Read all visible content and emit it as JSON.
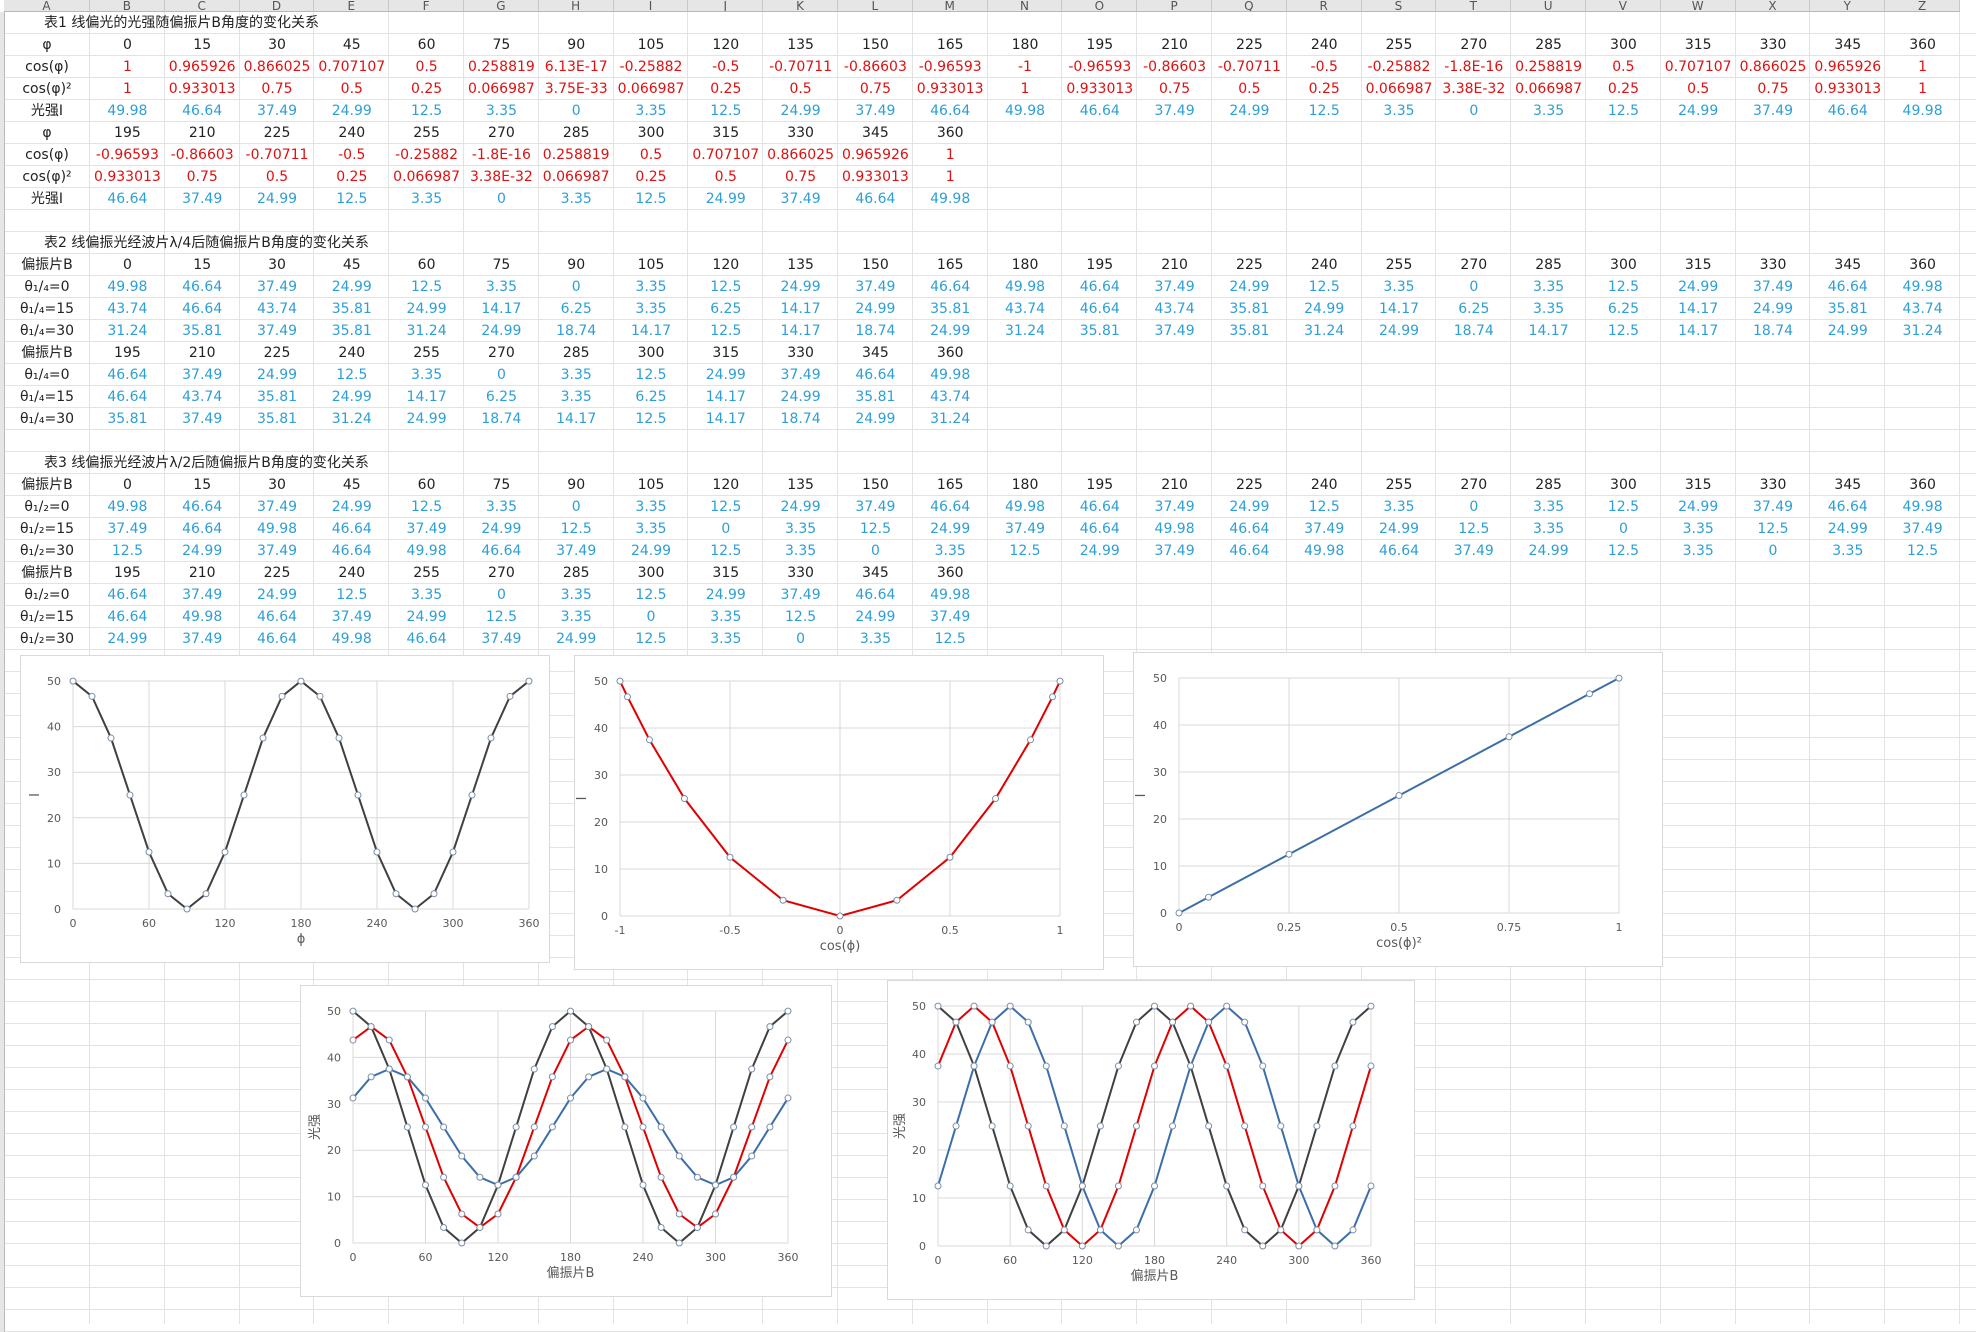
{
  "columns": [
    "A",
    "B",
    "C",
    "D",
    "E",
    "F",
    "G",
    "H",
    "I",
    "J",
    "K",
    "L",
    "M",
    "N",
    "O",
    "P",
    "Q",
    "R",
    "S",
    "T",
    "U",
    "V",
    "W",
    "X",
    "Y",
    "Z"
  ],
  "table1": {
    "title": "表1 线偏光的光强随偏振片B角度的变化关系",
    "row_labels": [
      "φ",
      "cos(φ)",
      "cos(φ)²",
      "光强I"
    ],
    "block1": {
      "phi": [
        "0",
        "15",
        "30",
        "45",
        "60",
        "75",
        "90",
        "105",
        "120",
        "135",
        "150",
        "165",
        "180",
        "195",
        "210",
        "225",
        "240",
        "255",
        "270",
        "285",
        "300",
        "315",
        "330",
        "345",
        "360"
      ],
      "cos": [
        "1",
        "0.965926",
        "0.866025",
        "0.707107",
        "0.5",
        "0.258819",
        "6.13E-17",
        "-0.25882",
        "-0.5",
        "-0.70711",
        "-0.86603",
        "-0.96593",
        "-1",
        "-0.96593",
        "-0.86603",
        "-0.70711",
        "-0.5",
        "-0.25882",
        "-1.8E-16",
        "0.258819",
        "0.5",
        "0.707107",
        "0.866025",
        "0.965926",
        "1"
      ],
      "cos2": [
        "1",
        "0.933013",
        "0.75",
        "0.5",
        "0.25",
        "0.066987",
        "3.75E-33",
        "0.066987",
        "0.25",
        "0.5",
        "0.75",
        "0.933013",
        "1",
        "0.933013",
        "0.75",
        "0.5",
        "0.25",
        "0.066987",
        "3.38E-32",
        "0.066987",
        "0.25",
        "0.5",
        "0.75",
        "0.933013",
        "1"
      ],
      "I": [
        "49.98",
        "46.64",
        "37.49",
        "24.99",
        "12.5",
        "3.35",
        "0",
        "3.35",
        "12.5",
        "24.99",
        "37.49",
        "46.64",
        "49.98",
        "46.64",
        "37.49",
        "24.99",
        "12.5",
        "3.35",
        "0",
        "3.35",
        "12.5",
        "24.99",
        "37.49",
        "46.64",
        "49.98"
      ]
    },
    "block2": {
      "phi": [
        "195",
        "210",
        "225",
        "240",
        "255",
        "270",
        "285",
        "300",
        "315",
        "330",
        "345",
        "360"
      ],
      "cos": [
        "-0.96593",
        "-0.86603",
        "-0.70711",
        "-0.5",
        "-0.25882",
        "-1.8E-16",
        "0.258819",
        "0.5",
        "0.707107",
        "0.866025",
        "0.965926",
        "1"
      ],
      "cos2": [
        "0.933013",
        "0.75",
        "0.5",
        "0.25",
        "0.066987",
        "3.38E-32",
        "0.066987",
        "0.25",
        "0.5",
        "0.75",
        "0.933013",
        "1"
      ],
      "I": [
        "46.64",
        "37.49",
        "24.99",
        "12.5",
        "3.35",
        "0",
        "3.35",
        "12.5",
        "24.99",
        "37.49",
        "46.64",
        "49.98"
      ]
    }
  },
  "table2": {
    "title": "表2 线偏振光经波片λ/4后随偏振片B角度的变化关系",
    "row_labels": [
      "偏振片B",
      "θ₁/₄=0",
      "θ₁/₄=15",
      "θ₁/₄=30"
    ],
    "block1": {
      "B": [
        "0",
        "15",
        "30",
        "45",
        "60",
        "75",
        "90",
        "105",
        "120",
        "135",
        "150",
        "165",
        "180",
        "195",
        "210",
        "225",
        "240",
        "255",
        "270",
        "285",
        "300",
        "315",
        "330",
        "345",
        "360"
      ],
      "r0": [
        "49.98",
        "46.64",
        "37.49",
        "24.99",
        "12.5",
        "3.35",
        "0",
        "3.35",
        "12.5",
        "24.99",
        "37.49",
        "46.64",
        "49.98",
        "46.64",
        "37.49",
        "24.99",
        "12.5",
        "3.35",
        "0",
        "3.35",
        "12.5",
        "24.99",
        "37.49",
        "46.64",
        "49.98"
      ],
      "r15": [
        "43.74",
        "46.64",
        "43.74",
        "35.81",
        "24.99",
        "14.17",
        "6.25",
        "3.35",
        "6.25",
        "14.17",
        "24.99",
        "35.81",
        "43.74",
        "46.64",
        "43.74",
        "35.81",
        "24.99",
        "14.17",
        "6.25",
        "3.35",
        "6.25",
        "14.17",
        "24.99",
        "35.81",
        "43.74"
      ],
      "r30": [
        "31.24",
        "35.81",
        "37.49",
        "35.81",
        "31.24",
        "24.99",
        "18.74",
        "14.17",
        "12.5",
        "14.17",
        "18.74",
        "24.99",
        "31.24",
        "35.81",
        "37.49",
        "35.81",
        "31.24",
        "24.99",
        "18.74",
        "14.17",
        "12.5",
        "14.17",
        "18.74",
        "24.99",
        "31.24"
      ]
    },
    "block2": {
      "B": [
        "195",
        "210",
        "225",
        "240",
        "255",
        "270",
        "285",
        "300",
        "315",
        "330",
        "345",
        "360"
      ],
      "r0": [
        "46.64",
        "37.49",
        "24.99",
        "12.5",
        "3.35",
        "0",
        "3.35",
        "12.5",
        "24.99",
        "37.49",
        "46.64",
        "49.98"
      ],
      "r15": [
        "46.64",
        "43.74",
        "35.81",
        "24.99",
        "14.17",
        "6.25",
        "3.35",
        "6.25",
        "14.17",
        "24.99",
        "35.81",
        "43.74"
      ],
      "r30": [
        "35.81",
        "37.49",
        "35.81",
        "31.24",
        "24.99",
        "18.74",
        "14.17",
        "12.5",
        "14.17",
        "18.74",
        "24.99",
        "31.24"
      ]
    }
  },
  "table3": {
    "title": "表3 线偏振光经波片λ/2后随偏振片B角度的变化关系",
    "row_labels": [
      "偏振片B",
      "θ₁/₂=0",
      "θ₁/₂=15",
      "θ₁/₂=30"
    ],
    "block1": {
      "B": [
        "0",
        "15",
        "30",
        "45",
        "60",
        "75",
        "90",
        "105",
        "120",
        "135",
        "150",
        "165",
        "180",
        "195",
        "210",
        "225",
        "240",
        "255",
        "270",
        "285",
        "300",
        "315",
        "330",
        "345",
        "360"
      ],
      "r0": [
        "49.98",
        "46.64",
        "37.49",
        "24.99",
        "12.5",
        "3.35",
        "0",
        "3.35",
        "12.5",
        "24.99",
        "37.49",
        "46.64",
        "49.98",
        "46.64",
        "37.49",
        "24.99",
        "12.5",
        "3.35",
        "0",
        "3.35",
        "12.5",
        "24.99",
        "37.49",
        "46.64",
        "49.98"
      ],
      "r15": [
        "37.49",
        "46.64",
        "49.98",
        "46.64",
        "37.49",
        "24.99",
        "12.5",
        "3.35",
        "0",
        "3.35",
        "12.5",
        "24.99",
        "37.49",
        "46.64",
        "49.98",
        "46.64",
        "37.49",
        "24.99",
        "12.5",
        "3.35",
        "0",
        "3.35",
        "12.5",
        "24.99",
        "37.49"
      ],
      "r30": [
        "12.5",
        "24.99",
        "37.49",
        "46.64",
        "49.98",
        "46.64",
        "37.49",
        "24.99",
        "12.5",
        "3.35",
        "0",
        "3.35",
        "12.5",
        "24.99",
        "37.49",
        "46.64",
        "49.98",
        "46.64",
        "37.49",
        "24.99",
        "12.5",
        "3.35",
        "0",
        "3.35",
        "12.5"
      ]
    },
    "block2": {
      "B": [
        "195",
        "210",
        "225",
        "240",
        "255",
        "270",
        "285",
        "300",
        "315",
        "330",
        "345",
        "360"
      ],
      "r0": [
        "46.64",
        "37.49",
        "24.99",
        "12.5",
        "3.35",
        "0",
        "3.35",
        "12.5",
        "24.99",
        "37.49",
        "46.64",
        "49.98"
      ],
      "r15": [
        "46.64",
        "49.98",
        "46.64",
        "37.49",
        "24.99",
        "12.5",
        "3.35",
        "0",
        "3.35",
        "12.5",
        "24.99",
        "37.49"
      ],
      "r30": [
        "24.99",
        "37.49",
        "46.64",
        "49.98",
        "46.64",
        "37.49",
        "24.99",
        "12.5",
        "3.35",
        "0",
        "3.35",
        "12.5"
      ]
    }
  },
  "colors": {
    "series_black": "#404040",
    "series_red": "#e00000",
    "series_blue": "#3c6eaa",
    "value_red": "#d11111",
    "value_blue": "#2e9fd6"
  },
  "chart_data": [
    {
      "type": "line",
      "xlabel": "ϕ",
      "ylabel": "I",
      "xlim": [
        0,
        360
      ],
      "ylim": [
        0,
        50
      ],
      "xticks": [
        0,
        60,
        120,
        180,
        240,
        300,
        360
      ],
      "yticks": [
        0,
        10,
        20,
        30,
        40,
        50
      ],
      "x": [
        0,
        15,
        30,
        45,
        60,
        75,
        90,
        105,
        120,
        135,
        150,
        165,
        180,
        195,
        210,
        225,
        240,
        255,
        270,
        285,
        300,
        315,
        330,
        345,
        360
      ],
      "series": [
        {
          "color": "#404040",
          "values": [
            49.98,
            46.64,
            37.49,
            24.99,
            12.5,
            3.35,
            0,
            3.35,
            12.5,
            24.99,
            37.49,
            46.64,
            49.98,
            46.64,
            37.49,
            24.99,
            12.5,
            3.35,
            0,
            3.35,
            12.5,
            24.99,
            37.49,
            46.64,
            49.98
          ]
        }
      ]
    },
    {
      "type": "line",
      "xlabel": "cos(ϕ)",
      "ylabel": "I",
      "xlim": [
        -1,
        1
      ],
      "ylim": [
        0,
        50
      ],
      "xticks": [
        -1,
        -0.5,
        0,
        0.5,
        1
      ],
      "yticks": [
        0,
        10,
        20,
        30,
        40,
        50
      ],
      "x": [
        1,
        0.965926,
        0.866025,
        0.707107,
        0.5,
        0.258819,
        0,
        -0.25882,
        -0.5,
        -0.70711,
        -0.86603,
        -0.96593,
        -1
      ],
      "series": [
        {
          "color": "#e00000",
          "values": [
            49.98,
            46.64,
            37.49,
            24.99,
            12.5,
            3.35,
            0,
            3.35,
            12.5,
            24.99,
            37.49,
            46.64,
            49.98
          ]
        }
      ]
    },
    {
      "type": "line",
      "xlabel": "cos(ϕ)²",
      "ylabel": "I",
      "xlim": [
        0,
        1
      ],
      "ylim": [
        0,
        50
      ],
      "xticks": [
        0,
        0.25,
        0.5,
        0.75,
        1
      ],
      "yticks": [
        0,
        10,
        20,
        30,
        40,
        50
      ],
      "x": [
        0,
        0.066987,
        0.25,
        0.5,
        0.75,
        0.933013,
        1
      ],
      "series": [
        {
          "color": "#3c6eaa",
          "values": [
            0,
            3.35,
            12.5,
            24.99,
            37.49,
            46.64,
            49.98
          ]
        }
      ]
    },
    {
      "type": "line",
      "xlabel": "偏振片B",
      "ylabel": "光强",
      "xlim": [
        0,
        360
      ],
      "ylim": [
        0,
        50
      ],
      "xticks": [
        0,
        60,
        120,
        180,
        240,
        300,
        360
      ],
      "yticks": [
        0,
        10,
        20,
        30,
        40,
        50
      ],
      "x": [
        0,
        15,
        30,
        45,
        60,
        75,
        90,
        105,
        120,
        135,
        150,
        165,
        180,
        195,
        210,
        225,
        240,
        255,
        270,
        285,
        300,
        315,
        330,
        345,
        360
      ],
      "series": [
        {
          "color": "#404040",
          "values": [
            49.98,
            46.64,
            37.49,
            24.99,
            12.5,
            3.35,
            0,
            3.35,
            12.5,
            24.99,
            37.49,
            46.64,
            49.98,
            46.64,
            37.49,
            24.99,
            12.5,
            3.35,
            0,
            3.35,
            12.5,
            24.99,
            37.49,
            46.64,
            49.98
          ]
        },
        {
          "color": "#e00000",
          "values": [
            43.74,
            46.64,
            43.74,
            35.81,
            24.99,
            14.17,
            6.25,
            3.35,
            6.25,
            14.17,
            24.99,
            35.81,
            43.74,
            46.64,
            43.74,
            35.81,
            24.99,
            14.17,
            6.25,
            3.35,
            6.25,
            14.17,
            24.99,
            35.81,
            43.74
          ]
        },
        {
          "color": "#3c6eaa",
          "values": [
            31.24,
            35.81,
            37.49,
            35.81,
            31.24,
            24.99,
            18.74,
            14.17,
            12.5,
            14.17,
            18.74,
            24.99,
            31.24,
            35.81,
            37.49,
            35.81,
            31.24,
            24.99,
            18.74,
            14.17,
            12.5,
            14.17,
            18.74,
            24.99,
            31.24
          ]
        }
      ]
    },
    {
      "type": "line",
      "xlabel": "偏振片B",
      "ylabel": "光强",
      "xlim": [
        0,
        360
      ],
      "ylim": [
        0,
        50
      ],
      "xticks": [
        0,
        60,
        120,
        180,
        240,
        300,
        360
      ],
      "yticks": [
        0,
        10,
        20,
        30,
        40,
        50
      ],
      "x": [
        0,
        15,
        30,
        45,
        60,
        75,
        90,
        105,
        120,
        135,
        150,
        165,
        180,
        195,
        210,
        225,
        240,
        255,
        270,
        285,
        300,
        315,
        330,
        345,
        360
      ],
      "series": [
        {
          "color": "#404040",
          "values": [
            49.98,
            46.64,
            37.49,
            24.99,
            12.5,
            3.35,
            0,
            3.35,
            12.5,
            24.99,
            37.49,
            46.64,
            49.98,
            46.64,
            37.49,
            24.99,
            12.5,
            3.35,
            0,
            3.35,
            12.5,
            24.99,
            37.49,
            46.64,
            49.98
          ]
        },
        {
          "color": "#e00000",
          "values": [
            37.49,
            46.64,
            49.98,
            46.64,
            37.49,
            24.99,
            12.5,
            3.35,
            0,
            3.35,
            12.5,
            24.99,
            37.49,
            46.64,
            49.98,
            46.64,
            37.49,
            24.99,
            12.5,
            3.35,
            0,
            3.35,
            12.5,
            24.99,
            37.49
          ]
        },
        {
          "color": "#3c6eaa",
          "values": [
            12.5,
            24.99,
            37.49,
            46.64,
            49.98,
            46.64,
            37.49,
            24.99,
            12.5,
            3.35,
            0,
            3.35,
            12.5,
            24.99,
            37.49,
            46.64,
            49.98,
            46.64,
            37.49,
            24.99,
            12.5,
            3.35,
            0,
            3.35,
            12.5
          ]
        }
      ]
    }
  ]
}
